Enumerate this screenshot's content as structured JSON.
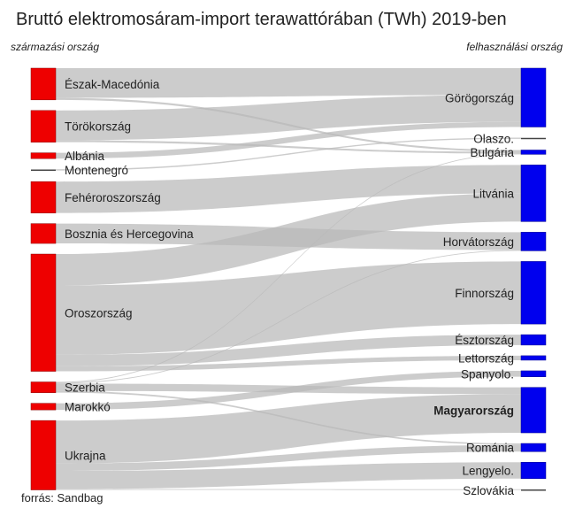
{
  "chart_data": {
    "type": "sankey",
    "title": "Bruttó elektromosáram-import terawattórában (TWh) 2019-ben",
    "source_header": "származási ország",
    "target_header": "felhasználási ország",
    "source_note": "forrás: Sandbag",
    "highlight_target": "Magyarország",
    "colors": {
      "source": "#ee0000",
      "target": "#0000ee",
      "flow": "#b9b9b9"
    },
    "sources": [
      "Észak-Macedónia",
      "Törökország",
      "Albánia",
      "Montenegró",
      "Fehéroroszország",
      "Bosznia és Hercegovina",
      "Oroszország",
      "Szerbia",
      "Marokkó",
      "Ukrajna"
    ],
    "targets": [
      "Görögország",
      "Olaszo.",
      "Bulgária",
      "Litvánia",
      "Horvátország",
      "Finnország",
      "Észtország",
      "Lettország",
      "Spanyolo.",
      "Magyarország",
      "Románia",
      "Lengyelo.",
      "Szlovákia"
    ],
    "flows": [
      {
        "from": "Észak-Macedónia",
        "to": "Görögország",
        "value": 1.8
      },
      {
        "from": "Észak-Macedónia",
        "to": "Bulgária",
        "value": 0.12
      },
      {
        "from": "Törökország",
        "to": "Görögország",
        "value": 1.8
      },
      {
        "from": "Törökország",
        "to": "Bulgária",
        "value": 0.12
      },
      {
        "from": "Albánia",
        "to": "Görögország",
        "value": 0.35
      },
      {
        "from": "Montenegró",
        "to": "Olaszo.",
        "value": 0.08
      },
      {
        "from": "Fehéroroszország",
        "to": "Litvánia",
        "value": 1.9
      },
      {
        "from": "Bosznia és Hercegovina",
        "to": "Horvátország",
        "value": 1.2
      },
      {
        "from": "Oroszország",
        "to": "Litvánia",
        "value": 1.9
      },
      {
        "from": "Oroszország",
        "to": "Finnország",
        "value": 4.2
      },
      {
        "from": "Oroszország",
        "to": "Észtország",
        "value": 0.7
      },
      {
        "from": "Oroszország",
        "to": "Lettország",
        "value": 0.3
      },
      {
        "from": "Szerbia",
        "to": "Bulgária",
        "value": 0.05
      },
      {
        "from": "Szerbia",
        "to": "Horvátország",
        "value": 0.05
      },
      {
        "from": "Szerbia",
        "to": "Magyarország",
        "value": 0.45
      },
      {
        "from": "Szerbia",
        "to": "Románia",
        "value": 0.1
      },
      {
        "from": "Marokkó",
        "to": "Spanyolo.",
        "value": 0.4
      },
      {
        "from": "Ukrajna",
        "to": "Magyarország",
        "value": 2.6
      },
      {
        "from": "Ukrajna",
        "to": "Románia",
        "value": 0.45
      },
      {
        "from": "Ukrajna",
        "to": "Lengyelo.",
        "value": 1.1
      },
      {
        "from": "Ukrajna",
        "to": "Szlovákia",
        "value": 0.05
      }
    ]
  }
}
